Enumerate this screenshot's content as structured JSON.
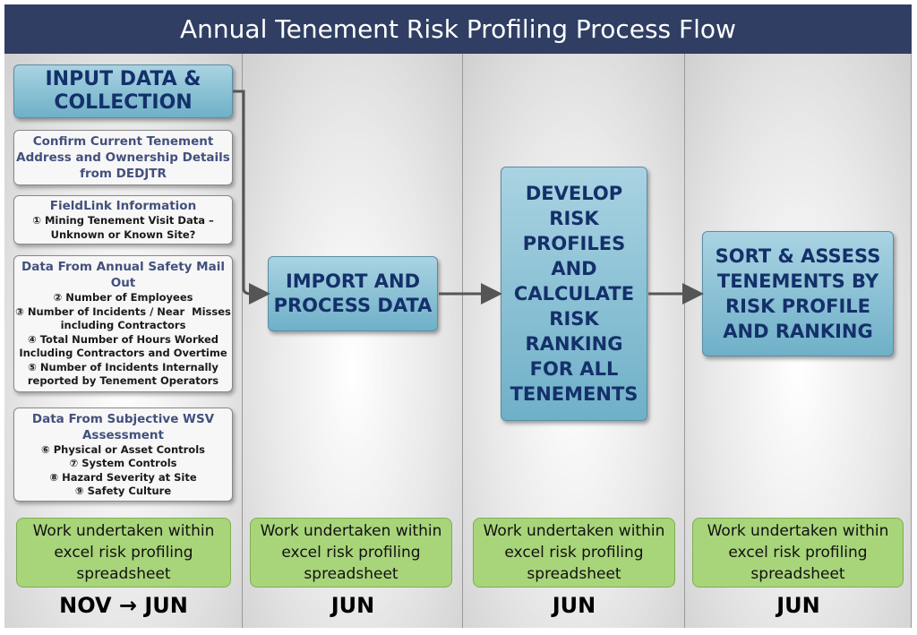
{
  "title": "Annual Tenement Risk Profiling Process Flow",
  "columns": [
    {
      "main": {
        "lines": [
          "INPUT DATA &",
          "COLLECTION"
        ]
      },
      "sources": [
        {
          "heading": [
            "Confirm Current Tenement",
            "Address and Ownership Details",
            "from DEDJTR"
          ],
          "items": []
        },
        {
          "heading": [
            "FieldLink Information"
          ],
          "items": [
            "① Mining Tenement Visit Data –",
            "Unknown or Known Site?"
          ]
        },
        {
          "heading": [
            "Data From Annual Safety Mail",
            "Out"
          ],
          "items": [
            "② Number of Employees",
            "③ Number of Incidents / Near  Misses",
            "including Contractors",
            "④ Total Number of Hours Worked",
            "Including Contractors and Overtime",
            "⑤ Number of Incidents Internally",
            "reported by Tenement Operators"
          ]
        },
        {
          "heading": [
            "Data From Subjective WSV",
            "Assessment"
          ],
          "items": [
            "⑥ Physical or Asset Controls",
            "⑦ System Controls",
            "⑧ Hazard Severity at Site",
            "⑨ Safety Culture"
          ]
        }
      ],
      "note": [
        "Work undertaken within",
        "excel risk profiling",
        "spreadsheet"
      ],
      "period": "NOV → JUN"
    },
    {
      "main": {
        "lines": [
          "IMPORT AND",
          "PROCESS DATA"
        ]
      },
      "note": [
        "Work undertaken within",
        "excel risk profiling",
        "spreadsheet"
      ],
      "period": "JUN"
    },
    {
      "main": {
        "lines": [
          "DEVELOP",
          "RISK",
          "PROFILES",
          "AND",
          "CALCULATE",
          "RISK",
          "RANKING",
          "FOR ALL",
          "TENEMENTS"
        ]
      },
      "note": [
        "Work undertaken within",
        "excel risk profiling",
        "spreadsheet"
      ],
      "period": "JUN"
    },
    {
      "main": {
        "lines": [
          "SORT & ASSESS",
          "TENEMENTS BY",
          "RISK PROFILE",
          "AND RANKING"
        ]
      },
      "note": [
        "Work undertaken within",
        "excel risk profiling",
        "spreadsheet"
      ],
      "period": "JUN"
    }
  ]
}
